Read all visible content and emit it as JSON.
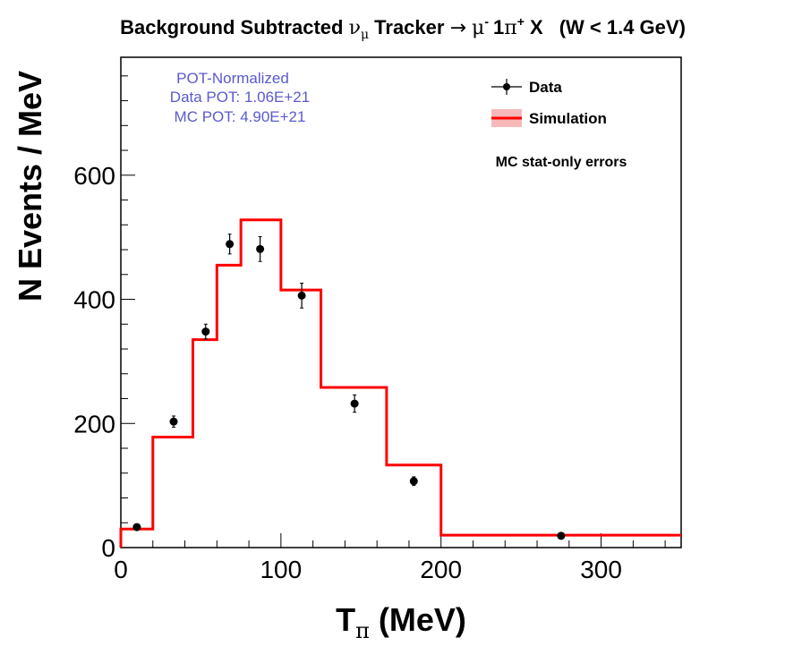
{
  "chart_data": {
    "type": "line",
    "title": "Background Subtracted ν_μ Tracker → μ⁻ 1π⁺ X  (W < 1.4 GeV)",
    "title_parts": {
      "lead": "Background Subtracted ",
      "nu": "ν",
      "nu_sub": "μ",
      "mid": " Tracker ",
      "arrow": "→",
      "mu": "μ",
      "mu_sup": "-",
      "one": "1",
      "pi": "π",
      "pi_sup": "+",
      "x": " X",
      "cut": "(W < 1.4 GeV)"
    },
    "xlabel": "T_π (MeV)",
    "xlabel_parts": {
      "t": "T",
      "sub": "π",
      "rest": " (MeV)"
    },
    "ylabel": "N Events / MeV",
    "xlim": [
      0,
      350
    ],
    "ylim": [
      0,
      790
    ],
    "x_ticks": [
      0,
      100,
      200,
      300
    ],
    "y_ticks": [
      0,
      200,
      400,
      600
    ],
    "pot_text": [
      "POT-Normalized",
      "Data POT: 1.06E+21",
      "MC POT: 4.90E+21"
    ],
    "legend": {
      "placement": "top-right",
      "data_label": "Data",
      "sim_label": "Simulation"
    },
    "note": "MC stat-only errors",
    "colors": {
      "simulation": "#ff0000",
      "simulation_band": "#f6b8b8",
      "data": "#000000",
      "pot_text": "#5a5acd"
    },
    "series": [
      {
        "name": "Simulation",
        "kind": "histogram",
        "bin_edges": [
          0,
          20,
          45,
          60,
          75,
          100,
          125,
          166,
          200,
          350
        ],
        "values": [
          30,
          178,
          335,
          455,
          528,
          415,
          258,
          133,
          20
        ]
      },
      {
        "name": "Data",
        "kind": "points",
        "x": [
          10,
          33,
          53,
          68,
          87,
          113,
          146,
          183,
          275
        ],
        "y": [
          33,
          203,
          348,
          489,
          481,
          406,
          232,
          107,
          19
        ],
        "yerr": [
          5,
          9,
          12,
          16,
          20,
          20,
          14,
          7,
          3
        ]
      }
    ]
  }
}
